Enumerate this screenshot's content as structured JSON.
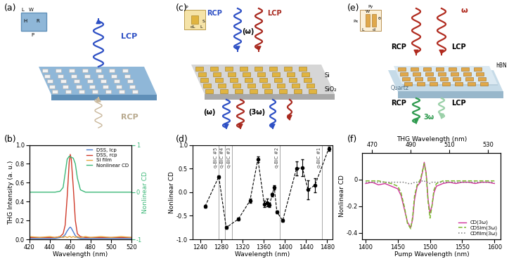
{
  "schematics": {
    "a": {
      "panel": "(a)",
      "beam_up": "LCP",
      "beam_down": "RCP",
      "inset": [
        "L",
        "W",
        "R",
        "H",
        "P"
      ]
    },
    "c": {
      "panel": "(c)",
      "pump_left": "RCP",
      "pump_right": "LCP",
      "pump_freq": "(ω)",
      "out_fund": "(ω)",
      "out_third": "(3ω)",
      "material": "Si",
      "substrate": "SiO₂",
      "inset": [
        "P",
        "S",
        "dL",
        "L"
      ]
    },
    "e": {
      "panel": "(e)",
      "pump_freq": "ω",
      "pump_left": "RCP",
      "pump_right": "LCP",
      "out_left": "RCP",
      "out_right": "LCP",
      "out_third": "3ω",
      "layer": "hBN",
      "substrate": "Quartz",
      "inset": [
        "Px",
        "Py",
        "L",
        "W",
        "d",
        "θ"
      ]
    }
  },
  "chart_data": [
    {
      "type": "line",
      "panel": "(b)",
      "xlabel": "Wavelength (nm)",
      "ylabel": "THG Intensity (a. u.)",
      "y2label": "Nonlinear CD",
      "xlim": [
        420,
        520
      ],
      "xticks": [
        420,
        440,
        460,
        480,
        500,
        520
      ],
      "ylim": [
        0,
        1
      ],
      "yticks": [
        {
          "value": 0,
          "label": "0.0"
        },
        {
          "value": 0.2,
          "label": "0.2"
        },
        {
          "value": 0.4,
          "label": "0.4"
        },
        {
          "value": 0.6,
          "label": "0.6"
        },
        {
          "value": 0.8,
          "label": "0.8"
        },
        {
          "value": 1,
          "label": "1.0"
        }
      ],
      "y2lim": [
        -1,
        1
      ],
      "y2ticks": [
        -1,
        0,
        1
      ],
      "legend": "upper right",
      "x": [
        420,
        430,
        440,
        445,
        450,
        453,
        455,
        457,
        459,
        460,
        461,
        463,
        465,
        467,
        470,
        475,
        480,
        490,
        500,
        510,
        520
      ],
      "series": [
        {
          "name": "DSS, lcp",
          "color": "#4a7bd0",
          "values": [
            0.01,
            0.01,
            0.01,
            0.01,
            0.02,
            0.03,
            0.05,
            0.09,
            0.12,
            0.13,
            0.12,
            0.08,
            0.04,
            0.02,
            0.01,
            0.01,
            0.01,
            0.01,
            0.01,
            0.01,
            0.01
          ]
        },
        {
          "name": "DSS, rcp",
          "color": "#d03a2a",
          "values": [
            0.02,
            0.02,
            0.02,
            0.02,
            0.03,
            0.06,
            0.15,
            0.45,
            0.82,
            0.9,
            0.85,
            0.55,
            0.2,
            0.06,
            0.03,
            0.02,
            0.02,
            0.02,
            0.02,
            0.02,
            0.02
          ]
        },
        {
          "name": "Si film",
          "color": "#e8a33a",
          "values": [
            0.03,
            0.02,
            0.03,
            0.02,
            0.03,
            0.02,
            0.03,
            0.02,
            0.03,
            0.03,
            0.02,
            0.03,
            0.02,
            0.03,
            0.02,
            0.03,
            0.02,
            0.03,
            0.02,
            0.03,
            0.02
          ]
        },
        {
          "name": "Nonlinear CD",
          "color": "#3cb878",
          "axis": "y2",
          "values": [
            0,
            0,
            0,
            0,
            0.02,
            0.1,
            0.4,
            0.7,
            0.76,
            0.75,
            0.74,
            0.72,
            0.6,
            0.3,
            0.05,
            0,
            0,
            0,
            0,
            0,
            0
          ]
        }
      ]
    },
    {
      "type": "errorbar",
      "panel": "(d)",
      "xlabel": "Wavelength (nm)",
      "ylabel": "Nonlinear CD",
      "xlim": [
        1225,
        1490
      ],
      "xticks": [
        1240,
        1280,
        1320,
        1360,
        1400,
        1440,
        1480
      ],
      "ylim": [
        -1,
        1
      ],
      "yticks": [
        {
          "value": -1,
          "label": "-1.0"
        },
        {
          "value": -0.5,
          "label": "-0.5"
        },
        {
          "value": 0,
          "label": "0.0"
        },
        {
          "value": 0.5,
          "label": "0.5"
        },
        {
          "value": 1,
          "label": "1.0"
        }
      ],
      "color": "#000000",
      "marker": "o",
      "line_style": "dashed",
      "x": [
        1249,
        1275,
        1289,
        1312,
        1334,
        1349,
        1361,
        1366,
        1371,
        1376,
        1380,
        1385,
        1396,
        1422,
        1433,
        1444,
        1457,
        1483
      ],
      "values": [
        -0.3,
        0.33,
        -0.75,
        -0.57,
        -0.18,
        0.7,
        -0.25,
        -0.22,
        -0.27,
        -0.05,
        0.1,
        -0.42,
        -0.6,
        0.5,
        0.52,
        0.05,
        0.15,
        0.92
      ],
      "errors": [
        0.03,
        0.03,
        0.03,
        0.03,
        0.05,
        0.06,
        0.07,
        0.08,
        0.05,
        0.04,
        0.04,
        0.03,
        0.03,
        0.15,
        0.18,
        0.2,
        0.15,
        0.04
      ],
      "vlines": [
        {
          "x": 1275,
          "label": "q-BIC #5"
        },
        {
          "x": 1287,
          "label": "q-BIC #4"
        },
        {
          "x": 1300,
          "label": "q-BIC #3"
        },
        {
          "x": 1391,
          "label": "q-BIC #2"
        },
        {
          "x": 1470,
          "label": "q-BIC #1"
        }
      ]
    },
    {
      "type": "line",
      "panel": "(f)",
      "xlabel": "Pump Wavelength (nm)",
      "ylabel": "Nonlinear CD",
      "x2label": "THG Wavelength (nm)",
      "xlim": [
        1395,
        1610
      ],
      "xticks": [
        1400,
        1450,
        1500,
        1550,
        1600
      ],
      "x2lim": [
        465,
        536.67
      ],
      "x2ticks": [
        470,
        490,
        510,
        530
      ],
      "ylim": [
        -0.45,
        0.2
      ],
      "yticks": [
        -0.4,
        -0.2,
        0
      ],
      "legend": "lower right",
      "x": [
        1400,
        1410,
        1420,
        1430,
        1440,
        1450,
        1455,
        1460,
        1465,
        1470,
        1473,
        1476,
        1480,
        1485,
        1488,
        1491,
        1494,
        1497,
        1500,
        1503,
        1506,
        1510,
        1520,
        1530,
        1540,
        1550,
        1560,
        1570,
        1580,
        1590,
        1600
      ],
      "series": [
        {
          "name": "CD(3ω)",
          "color": "#d0309a",
          "line_style": "solid",
          "values": [
            -0.03,
            -0.02,
            -0.04,
            -0.03,
            -0.05,
            -0.07,
            -0.12,
            -0.22,
            -0.32,
            -0.36,
            -0.3,
            -0.15,
            -0.05,
            -0.02,
            0.05,
            0.13,
            0.05,
            -0.15,
            -0.25,
            -0.2,
            -0.1,
            -0.05,
            -0.03,
            -0.02,
            -0.03,
            -0.02,
            -0.02,
            -0.03,
            -0.02,
            -0.02,
            -0.03
          ]
        },
        {
          "name": "CDSim(3ω)",
          "color": "#7cb82f",
          "line_style": "dashed",
          "values": [
            -0.01,
            -0.01,
            -0.01,
            -0.02,
            -0.03,
            -0.05,
            -0.1,
            -0.2,
            -0.33,
            -0.37,
            -0.28,
            -0.12,
            -0.04,
            0.0,
            0.06,
            0.12,
            0.04,
            -0.17,
            -0.29,
            -0.2,
            -0.08,
            -0.03,
            -0.01,
            -0.01,
            -0.01,
            -0.01,
            -0.01,
            -0.01,
            -0.01,
            -0.01,
            -0.01
          ]
        },
        {
          "name": "CDfilm(3ω)",
          "color": "#777777",
          "line_style": "dotted",
          "values": [
            -0.02,
            -0.02,
            -0.02,
            -0.02,
            -0.02,
            -0.02,
            -0.02,
            -0.02,
            -0.03,
            -0.03,
            -0.03,
            -0.02,
            -0.02,
            -0.02,
            -0.01,
            -0.01,
            -0.02,
            -0.02,
            -0.03,
            -0.02,
            -0.02,
            -0.02,
            -0.02,
            -0.02,
            -0.02,
            -0.02,
            -0.02,
            -0.02,
            -0.02,
            -0.02,
            -0.02
          ]
        }
      ]
    }
  ]
}
